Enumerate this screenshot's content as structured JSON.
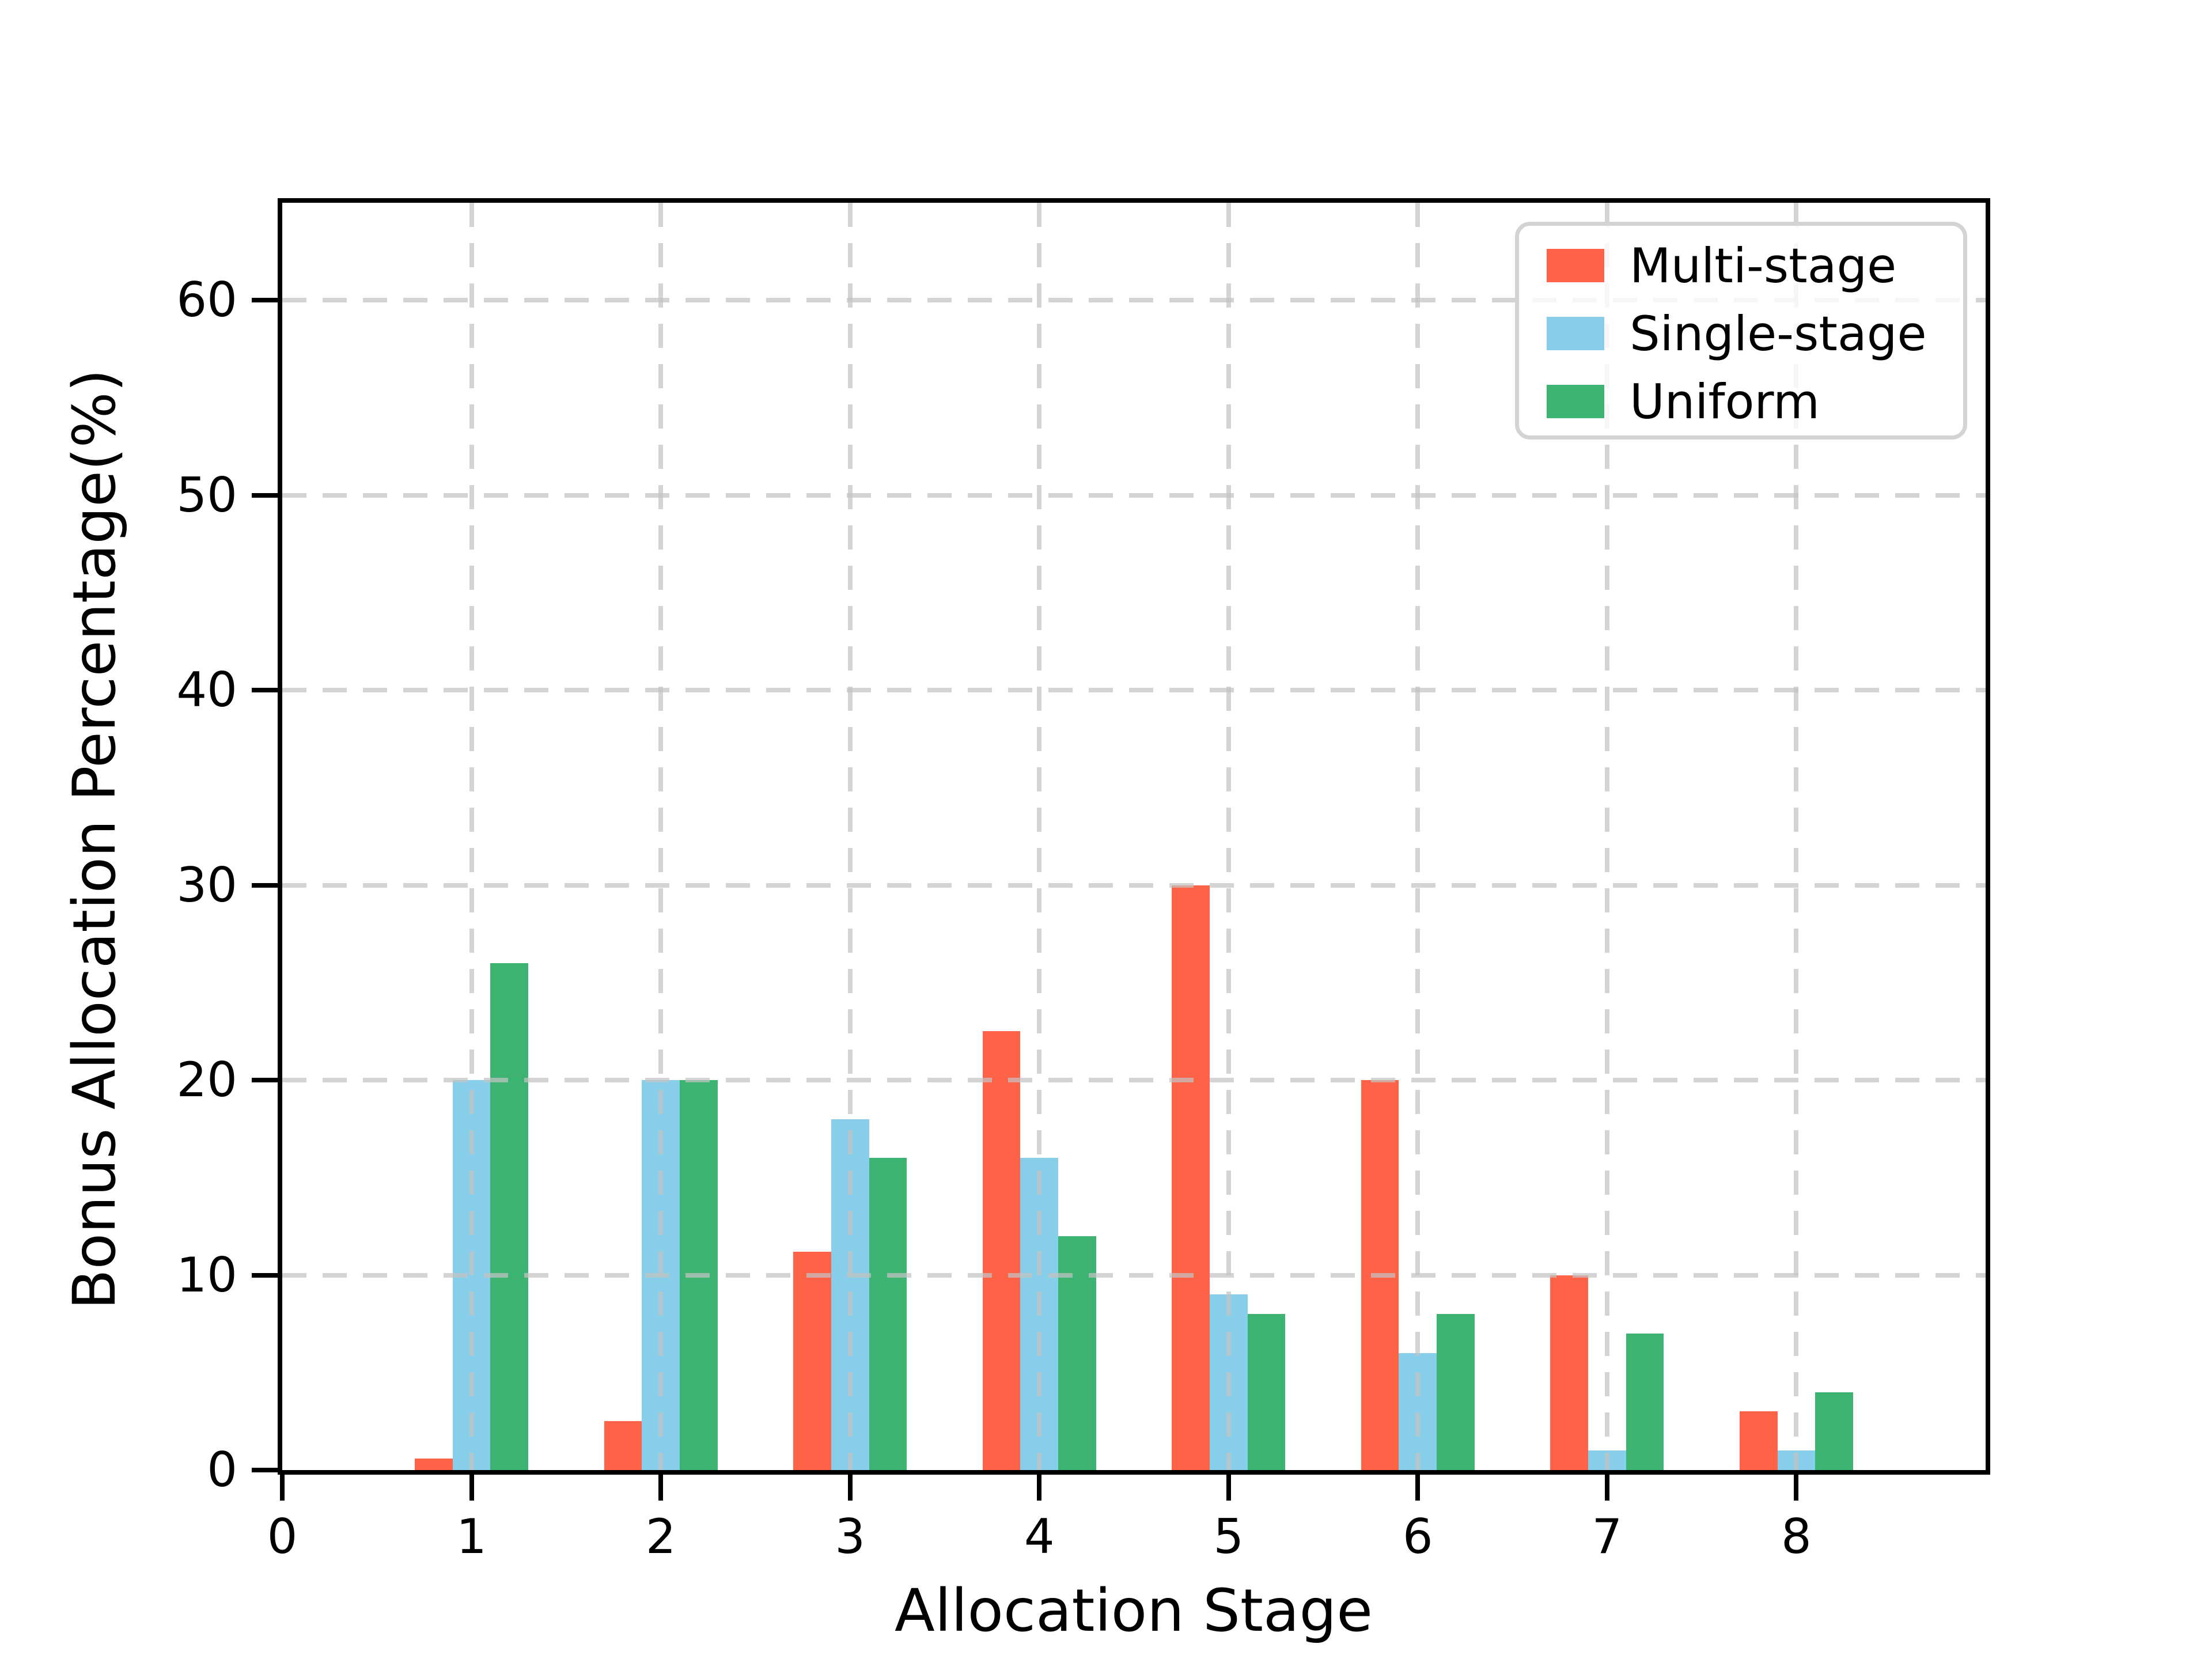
{
  "chart_data": {
    "type": "bar",
    "title": "",
    "xlabel": "Allocation Stage",
    "ylabel": "Bonus Allocation Percentage(%)",
    "categories": [
      1,
      2,
      3,
      4,
      5,
      6,
      7,
      8
    ],
    "series": [
      {
        "name": "Multi-stage",
        "color": "#FF6347",
        "values": [
          0.6,
          2.5,
          11.2,
          22.5,
          30,
          20,
          10,
          3
        ]
      },
      {
        "name": "Single-stage",
        "color": "#87CEEB",
        "values": [
          20,
          20,
          18,
          16,
          9,
          6,
          1,
          1
        ]
      },
      {
        "name": "Uniform",
        "color": "#3CB371",
        "values": [
          26,
          20,
          16,
          12,
          8,
          8,
          7,
          4
        ]
      }
    ],
    "xlim": [
      0,
      9
    ],
    "ylim": [
      0,
      65
    ],
    "xticks": [
      0,
      1,
      2,
      3,
      4,
      5,
      6,
      7,
      8
    ],
    "yticks": [
      0,
      10,
      20,
      30,
      40,
      50,
      60
    ],
    "bar_width": 0.2,
    "grid": true,
    "grid_style": "dashed",
    "grid_color": "#d3d3d3",
    "legend_position": "upper right",
    "axis_color": "#000000",
    "background_color": "#ffffff"
  }
}
